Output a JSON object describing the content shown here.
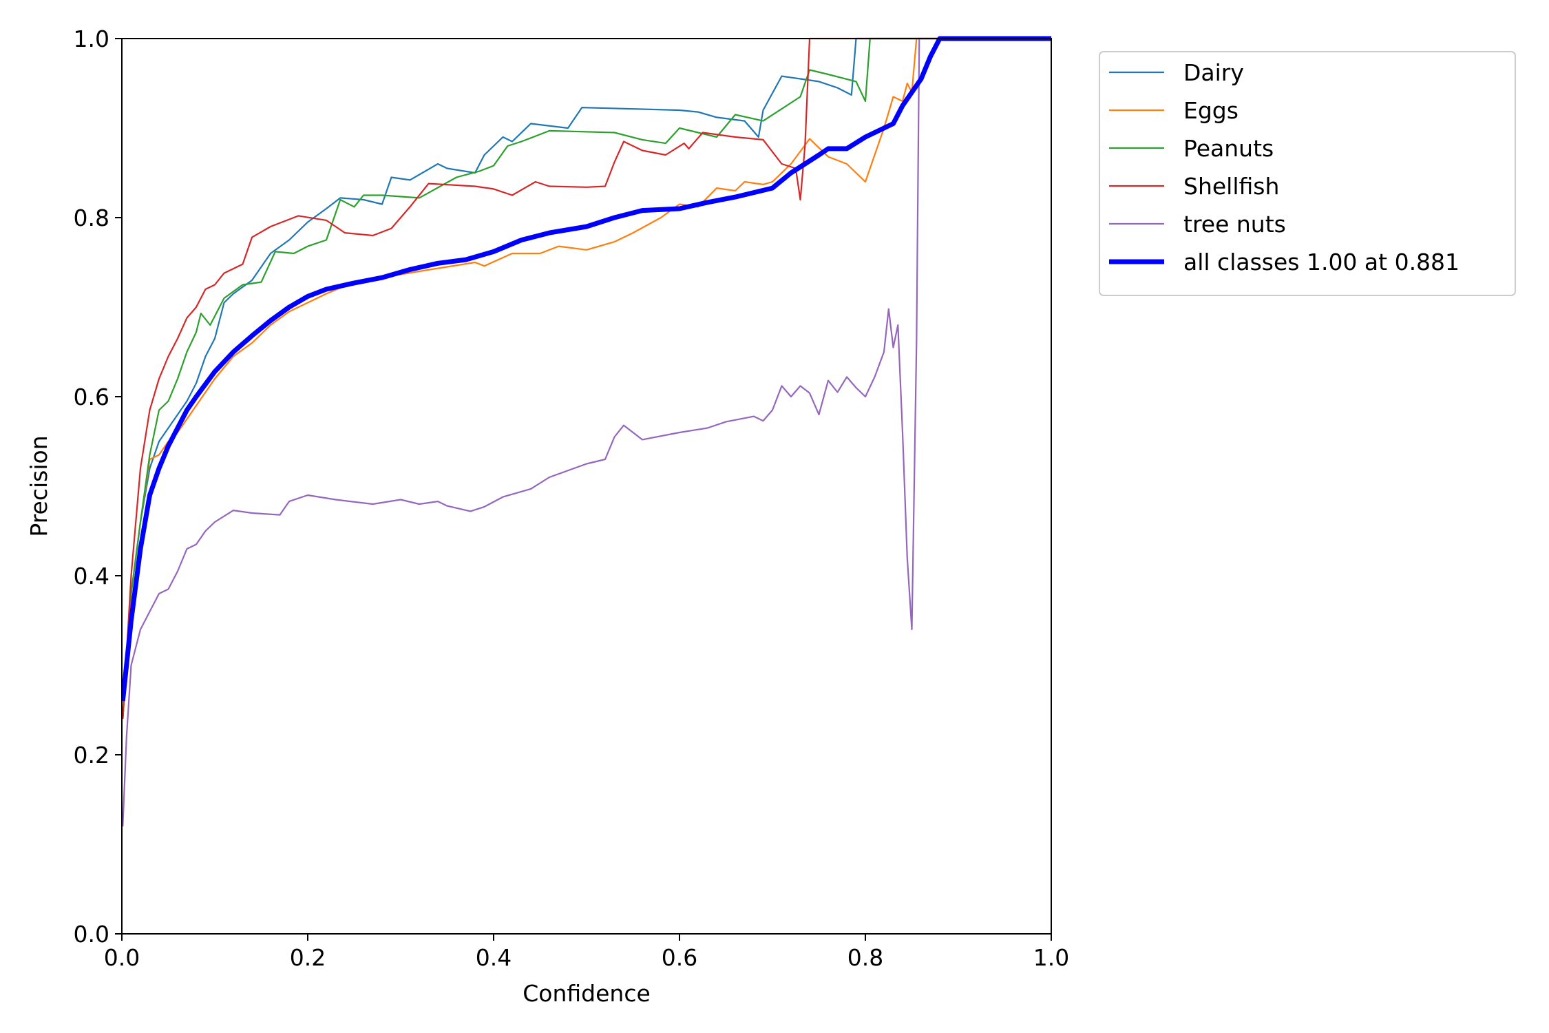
{
  "chart_data": {
    "type": "line",
    "title": "",
    "xlabel": "Confidence",
    "ylabel": "Precision",
    "xlim": [
      0,
      1
    ],
    "ylim": [
      0,
      1
    ],
    "xticks": [
      "0.0",
      "0.2",
      "0.4",
      "0.6",
      "0.8",
      "1.0"
    ],
    "yticks": [
      "0.0",
      "0.2",
      "0.4",
      "0.6",
      "0.8",
      "1.0"
    ],
    "grid": false,
    "legend_position": "outside-top-right",
    "series": [
      {
        "name": "Dairy",
        "color": "#1f77b4",
        "points": [
          [
            0.001,
            0.24
          ],
          [
            0.01,
            0.38
          ],
          [
            0.02,
            0.46
          ],
          [
            0.03,
            0.52
          ],
          [
            0.04,
            0.55
          ],
          [
            0.05,
            0.565
          ],
          [
            0.06,
            0.58
          ],
          [
            0.07,
            0.595
          ],
          [
            0.08,
            0.615
          ],
          [
            0.09,
            0.645
          ],
          [
            0.1,
            0.665
          ],
          [
            0.11,
            0.705
          ],
          [
            0.12,
            0.715
          ],
          [
            0.14,
            0.73
          ],
          [
            0.16,
            0.76
          ],
          [
            0.18,
            0.775
          ],
          [
            0.2,
            0.795
          ],
          [
            0.22,
            0.81
          ],
          [
            0.235,
            0.822
          ],
          [
            0.26,
            0.82
          ],
          [
            0.28,
            0.815
          ],
          [
            0.29,
            0.845
          ],
          [
            0.31,
            0.842
          ],
          [
            0.34,
            0.86
          ],
          [
            0.35,
            0.855
          ],
          [
            0.38,
            0.85
          ],
          [
            0.39,
            0.87
          ],
          [
            0.41,
            0.89
          ],
          [
            0.42,
            0.885
          ],
          [
            0.44,
            0.905
          ],
          [
            0.48,
            0.9
          ],
          [
            0.495,
            0.923
          ],
          [
            0.6,
            0.92
          ],
          [
            0.62,
            0.918
          ],
          [
            0.64,
            0.912
          ],
          [
            0.67,
            0.908
          ],
          [
            0.685,
            0.89
          ],
          [
            0.69,
            0.92
          ],
          [
            0.71,
            0.958
          ],
          [
            0.73,
            0.955
          ],
          [
            0.75,
            0.952
          ],
          [
            0.77,
            0.945
          ],
          [
            0.785,
            0.937
          ],
          [
            0.79,
            1.0
          ],
          [
            1.0,
            1.0
          ]
        ]
      },
      {
        "name": "Eggs",
        "color": "#ff7f0e",
        "points": [
          [
            0.001,
            0.24
          ],
          [
            0.01,
            0.38
          ],
          [
            0.02,
            0.46
          ],
          [
            0.03,
            0.53
          ],
          [
            0.04,
            0.535
          ],
          [
            0.05,
            0.55
          ],
          [
            0.06,
            0.56
          ],
          [
            0.07,
            0.575
          ],
          [
            0.08,
            0.59
          ],
          [
            0.09,
            0.605
          ],
          [
            0.1,
            0.62
          ],
          [
            0.12,
            0.645
          ],
          [
            0.14,
            0.66
          ],
          [
            0.16,
            0.68
          ],
          [
            0.18,
            0.695
          ],
          [
            0.2,
            0.705
          ],
          [
            0.22,
            0.715
          ],
          [
            0.25,
            0.728
          ],
          [
            0.28,
            0.733
          ],
          [
            0.32,
            0.74
          ],
          [
            0.35,
            0.745
          ],
          [
            0.38,
            0.75
          ],
          [
            0.39,
            0.746
          ],
          [
            0.42,
            0.76
          ],
          [
            0.45,
            0.76
          ],
          [
            0.47,
            0.768
          ],
          [
            0.5,
            0.764
          ],
          [
            0.53,
            0.773
          ],
          [
            0.55,
            0.783
          ],
          [
            0.58,
            0.8
          ],
          [
            0.6,
            0.815
          ],
          [
            0.62,
            0.812
          ],
          [
            0.64,
            0.833
          ],
          [
            0.66,
            0.83
          ],
          [
            0.67,
            0.84
          ],
          [
            0.69,
            0.837
          ],
          [
            0.7,
            0.84
          ],
          [
            0.72,
            0.86
          ],
          [
            0.74,
            0.888
          ],
          [
            0.76,
            0.868
          ],
          [
            0.78,
            0.86
          ],
          [
            0.79,
            0.85
          ],
          [
            0.8,
            0.84
          ],
          [
            0.81,
            0.87
          ],
          [
            0.82,
            0.9
          ],
          [
            0.83,
            0.935
          ],
          [
            0.84,
            0.93
          ],
          [
            0.845,
            0.95
          ],
          [
            0.85,
            0.94
          ],
          [
            0.855,
            1.0
          ],
          [
            1.0,
            1.0
          ]
        ]
      },
      {
        "name": "Peanuts",
        "color": "#2ca02c",
        "points": [
          [
            0.001,
            0.24
          ],
          [
            0.01,
            0.38
          ],
          [
            0.02,
            0.46
          ],
          [
            0.03,
            0.535
          ],
          [
            0.04,
            0.585
          ],
          [
            0.05,
            0.595
          ],
          [
            0.06,
            0.62
          ],
          [
            0.07,
            0.65
          ],
          [
            0.08,
            0.672
          ],
          [
            0.085,
            0.693
          ],
          [
            0.095,
            0.68
          ],
          [
            0.11,
            0.71
          ],
          [
            0.13,
            0.725
          ],
          [
            0.15,
            0.728
          ],
          [
            0.165,
            0.762
          ],
          [
            0.185,
            0.76
          ],
          [
            0.2,
            0.768
          ],
          [
            0.22,
            0.775
          ],
          [
            0.235,
            0.82
          ],
          [
            0.25,
            0.812
          ],
          [
            0.26,
            0.825
          ],
          [
            0.28,
            0.825
          ],
          [
            0.32,
            0.822
          ],
          [
            0.36,
            0.845
          ],
          [
            0.385,
            0.852
          ],
          [
            0.4,
            0.858
          ],
          [
            0.415,
            0.88
          ],
          [
            0.43,
            0.885
          ],
          [
            0.46,
            0.897
          ],
          [
            0.53,
            0.895
          ],
          [
            0.56,
            0.887
          ],
          [
            0.585,
            0.883
          ],
          [
            0.6,
            0.9
          ],
          [
            0.62,
            0.895
          ],
          [
            0.64,
            0.89
          ],
          [
            0.66,
            0.915
          ],
          [
            0.69,
            0.908
          ],
          [
            0.73,
            0.935
          ],
          [
            0.74,
            0.965
          ],
          [
            0.76,
            0.96
          ],
          [
            0.79,
            0.952
          ],
          [
            0.8,
            0.93
          ],
          [
            0.805,
            1.0
          ],
          [
            1.0,
            1.0
          ]
        ]
      },
      {
        "name": "Shellfish",
        "color": "#d62728",
        "points": [
          [
            0.001,
            0.24
          ],
          [
            0.01,
            0.4
          ],
          [
            0.02,
            0.52
          ],
          [
            0.03,
            0.585
          ],
          [
            0.04,
            0.62
          ],
          [
            0.05,
            0.645
          ],
          [
            0.06,
            0.665
          ],
          [
            0.07,
            0.688
          ],
          [
            0.08,
            0.7
          ],
          [
            0.09,
            0.72
          ],
          [
            0.1,
            0.725
          ],
          [
            0.11,
            0.738
          ],
          [
            0.13,
            0.748
          ],
          [
            0.14,
            0.778
          ],
          [
            0.16,
            0.79
          ],
          [
            0.19,
            0.802
          ],
          [
            0.22,
            0.797
          ],
          [
            0.24,
            0.783
          ],
          [
            0.27,
            0.78
          ],
          [
            0.29,
            0.788
          ],
          [
            0.31,
            0.812
          ],
          [
            0.33,
            0.838
          ],
          [
            0.38,
            0.835
          ],
          [
            0.4,
            0.832
          ],
          [
            0.42,
            0.825
          ],
          [
            0.445,
            0.84
          ],
          [
            0.46,
            0.835
          ],
          [
            0.5,
            0.834
          ],
          [
            0.52,
            0.835
          ],
          [
            0.53,
            0.862
          ],
          [
            0.54,
            0.885
          ],
          [
            0.56,
            0.875
          ],
          [
            0.585,
            0.87
          ],
          [
            0.605,
            0.883
          ],
          [
            0.61,
            0.877
          ],
          [
            0.625,
            0.895
          ],
          [
            0.66,
            0.89
          ],
          [
            0.69,
            0.887
          ],
          [
            0.71,
            0.86
          ],
          [
            0.725,
            0.855
          ],
          [
            0.73,
            0.82
          ],
          [
            0.735,
            0.88
          ],
          [
            0.74,
            1.0
          ],
          [
            1.0,
            1.0
          ]
        ]
      },
      {
        "name": "tree nuts",
        "color": "#9467bd",
        "points": [
          [
            0.001,
            0.12
          ],
          [
            0.005,
            0.22
          ],
          [
            0.01,
            0.3
          ],
          [
            0.02,
            0.34
          ],
          [
            0.03,
            0.36
          ],
          [
            0.04,
            0.38
          ],
          [
            0.05,
            0.385
          ],
          [
            0.06,
            0.405
          ],
          [
            0.07,
            0.43
          ],
          [
            0.08,
            0.435
          ],
          [
            0.09,
            0.45
          ],
          [
            0.1,
            0.46
          ],
          [
            0.12,
            0.473
          ],
          [
            0.14,
            0.47
          ],
          [
            0.17,
            0.468
          ],
          [
            0.18,
            0.483
          ],
          [
            0.2,
            0.49
          ],
          [
            0.23,
            0.485
          ],
          [
            0.27,
            0.48
          ],
          [
            0.3,
            0.485
          ],
          [
            0.32,
            0.48
          ],
          [
            0.34,
            0.483
          ],
          [
            0.35,
            0.478
          ],
          [
            0.375,
            0.472
          ],
          [
            0.39,
            0.477
          ],
          [
            0.41,
            0.488
          ],
          [
            0.44,
            0.497
          ],
          [
            0.46,
            0.51
          ],
          [
            0.5,
            0.525
          ],
          [
            0.52,
            0.53
          ],
          [
            0.53,
            0.555
          ],
          [
            0.54,
            0.568
          ],
          [
            0.56,
            0.552
          ],
          [
            0.6,
            0.56
          ],
          [
            0.63,
            0.565
          ],
          [
            0.65,
            0.572
          ],
          [
            0.68,
            0.578
          ],
          [
            0.69,
            0.573
          ],
          [
            0.7,
            0.585
          ],
          [
            0.71,
            0.612
          ],
          [
            0.72,
            0.6
          ],
          [
            0.73,
            0.612
          ],
          [
            0.74,
            0.604
          ],
          [
            0.75,
            0.58
          ],
          [
            0.76,
            0.618
          ],
          [
            0.77,
            0.605
          ],
          [
            0.78,
            0.622
          ],
          [
            0.79,
            0.61
          ],
          [
            0.8,
            0.6
          ],
          [
            0.81,
            0.622
          ],
          [
            0.82,
            0.65
          ],
          [
            0.825,
            0.698
          ],
          [
            0.83,
            0.655
          ],
          [
            0.835,
            0.68
          ],
          [
            0.84,
            0.56
          ],
          [
            0.845,
            0.42
          ],
          [
            0.85,
            0.34
          ],
          [
            0.855,
            0.66
          ],
          [
            0.858,
            1.0
          ],
          [
            1.0,
            1.0
          ]
        ]
      },
      {
        "name": "all classes 1.00 at 0.881",
        "color": "#0000ff",
        "points": [
          [
            0.001,
            0.26
          ],
          [
            0.01,
            0.35
          ],
          [
            0.02,
            0.43
          ],
          [
            0.03,
            0.49
          ],
          [
            0.04,
            0.52
          ],
          [
            0.05,
            0.545
          ],
          [
            0.06,
            0.565
          ],
          [
            0.07,
            0.585
          ],
          [
            0.08,
            0.6
          ],
          [
            0.1,
            0.628
          ],
          [
            0.12,
            0.65
          ],
          [
            0.14,
            0.668
          ],
          [
            0.16,
            0.685
          ],
          [
            0.18,
            0.7
          ],
          [
            0.2,
            0.712
          ],
          [
            0.22,
            0.72
          ],
          [
            0.25,
            0.727
          ],
          [
            0.28,
            0.733
          ],
          [
            0.31,
            0.742
          ],
          [
            0.34,
            0.749
          ],
          [
            0.37,
            0.753
          ],
          [
            0.4,
            0.762
          ],
          [
            0.43,
            0.775
          ],
          [
            0.46,
            0.783
          ],
          [
            0.5,
            0.79
          ],
          [
            0.53,
            0.8
          ],
          [
            0.56,
            0.808
          ],
          [
            0.6,
            0.81
          ],
          [
            0.63,
            0.817
          ],
          [
            0.66,
            0.823
          ],
          [
            0.7,
            0.833
          ],
          [
            0.72,
            0.85
          ],
          [
            0.75,
            0.87
          ],
          [
            0.76,
            0.877
          ],
          [
            0.78,
            0.877
          ],
          [
            0.8,
            0.89
          ],
          [
            0.82,
            0.9
          ],
          [
            0.83,
            0.905
          ],
          [
            0.84,
            0.925
          ],
          [
            0.86,
            0.955
          ],
          [
            0.87,
            0.98
          ],
          [
            0.88,
            1.0
          ],
          [
            1.0,
            1.0
          ]
        ]
      }
    ]
  }
}
